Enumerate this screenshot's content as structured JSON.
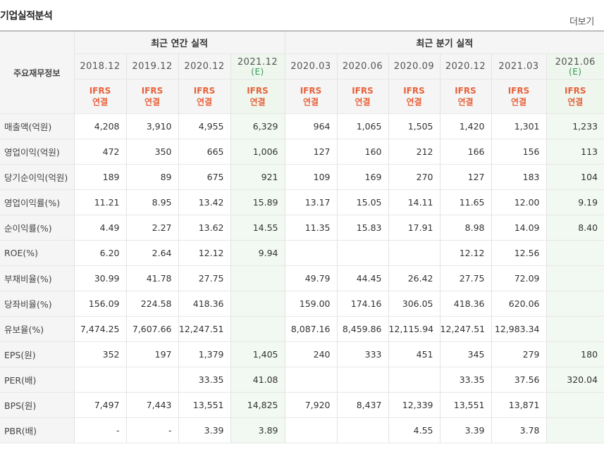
{
  "section": {
    "title": "기업실적분석",
    "more_label": "더보기"
  },
  "header": {
    "row_header_label": "주요재무정보",
    "annual_group": "최근 연간 실적",
    "quarterly_group": "최근 분기 실적",
    "estimate_mark": "(E)",
    "ifrs_line1": "IFRS",
    "ifrs_line2": "연결",
    "periods": [
      "2018.12",
      "2019.12",
      "2020.12",
      "2021.12",
      "2020.03",
      "2020.06",
      "2020.09",
      "2020.12",
      "2021.03",
      "2021.06"
    ]
  },
  "colors": {
    "ifrs": "#e8623a",
    "estimate_text": "#2f9a55",
    "estimate_bg": "#eef6ee"
  },
  "rows": [
    {
      "label": "매출액(억원)",
      "values": [
        "4,208",
        "3,910",
        "4,955",
        "6,329",
        "964",
        "1,065",
        "1,505",
        "1,420",
        "1,301",
        "1,233"
      ]
    },
    {
      "label": "영업이익(억원)",
      "values": [
        "472",
        "350",
        "665",
        "1,006",
        "127",
        "160",
        "212",
        "166",
        "156",
        "113"
      ]
    },
    {
      "label": "당기순이익(억원)",
      "values": [
        "189",
        "89",
        "675",
        "921",
        "109",
        "169",
        "270",
        "127",
        "183",
        "104"
      ]
    },
    {
      "label": "영업이익률(%)",
      "values": [
        "11.21",
        "8.95",
        "13.42",
        "15.89",
        "13.17",
        "15.05",
        "14.11",
        "11.65",
        "12.00",
        "9.19"
      ]
    },
    {
      "label": "순이익률(%)",
      "values": [
        "4.49",
        "2.27",
        "13.62",
        "14.55",
        "11.35",
        "15.83",
        "17.91",
        "8.98",
        "14.09",
        "8.40"
      ]
    },
    {
      "label": "ROE(%)",
      "values": [
        "6.20",
        "2.64",
        "12.12",
        "9.94",
        "",
        "",
        "",
        "12.12",
        "12.56",
        ""
      ]
    },
    {
      "label": "부채비율(%)",
      "values": [
        "30.99",
        "41.78",
        "27.75",
        "",
        "49.79",
        "44.45",
        "26.42",
        "27.75",
        "72.09",
        ""
      ]
    },
    {
      "label": "당좌비율(%)",
      "values": [
        "156.09",
        "224.58",
        "418.36",
        "",
        "159.00",
        "174.16",
        "306.05",
        "418.36",
        "620.06",
        ""
      ]
    },
    {
      "label": "유보율(%)",
      "values": [
        "7,474.25",
        "7,607.66",
        "12,247.51",
        "",
        "8,087.16",
        "8,459.86",
        "12,115.94",
        "12,247.51",
        "12,983.34",
        ""
      ]
    },
    {
      "label": "EPS(원)",
      "values": [
        "352",
        "197",
        "1,379",
        "1,405",
        "240",
        "333",
        "451",
        "345",
        "279",
        "180"
      ]
    },
    {
      "label": "PER(배)",
      "values": [
        "",
        "",
        "33.35",
        "41.08",
        "",
        "",
        "",
        "33.35",
        "37.56",
        "320.04"
      ]
    },
    {
      "label": "BPS(원)",
      "values": [
        "7,497",
        "7,443",
        "13,551",
        "14,825",
        "7,920",
        "8,437",
        "12,339",
        "13,551",
        "13,871",
        ""
      ]
    },
    {
      "label": "PBR(배)",
      "values": [
        "-",
        "-",
        "3.39",
        "3.89",
        "",
        "",
        "4.55",
        "3.39",
        "3.78",
        ""
      ]
    }
  ]
}
